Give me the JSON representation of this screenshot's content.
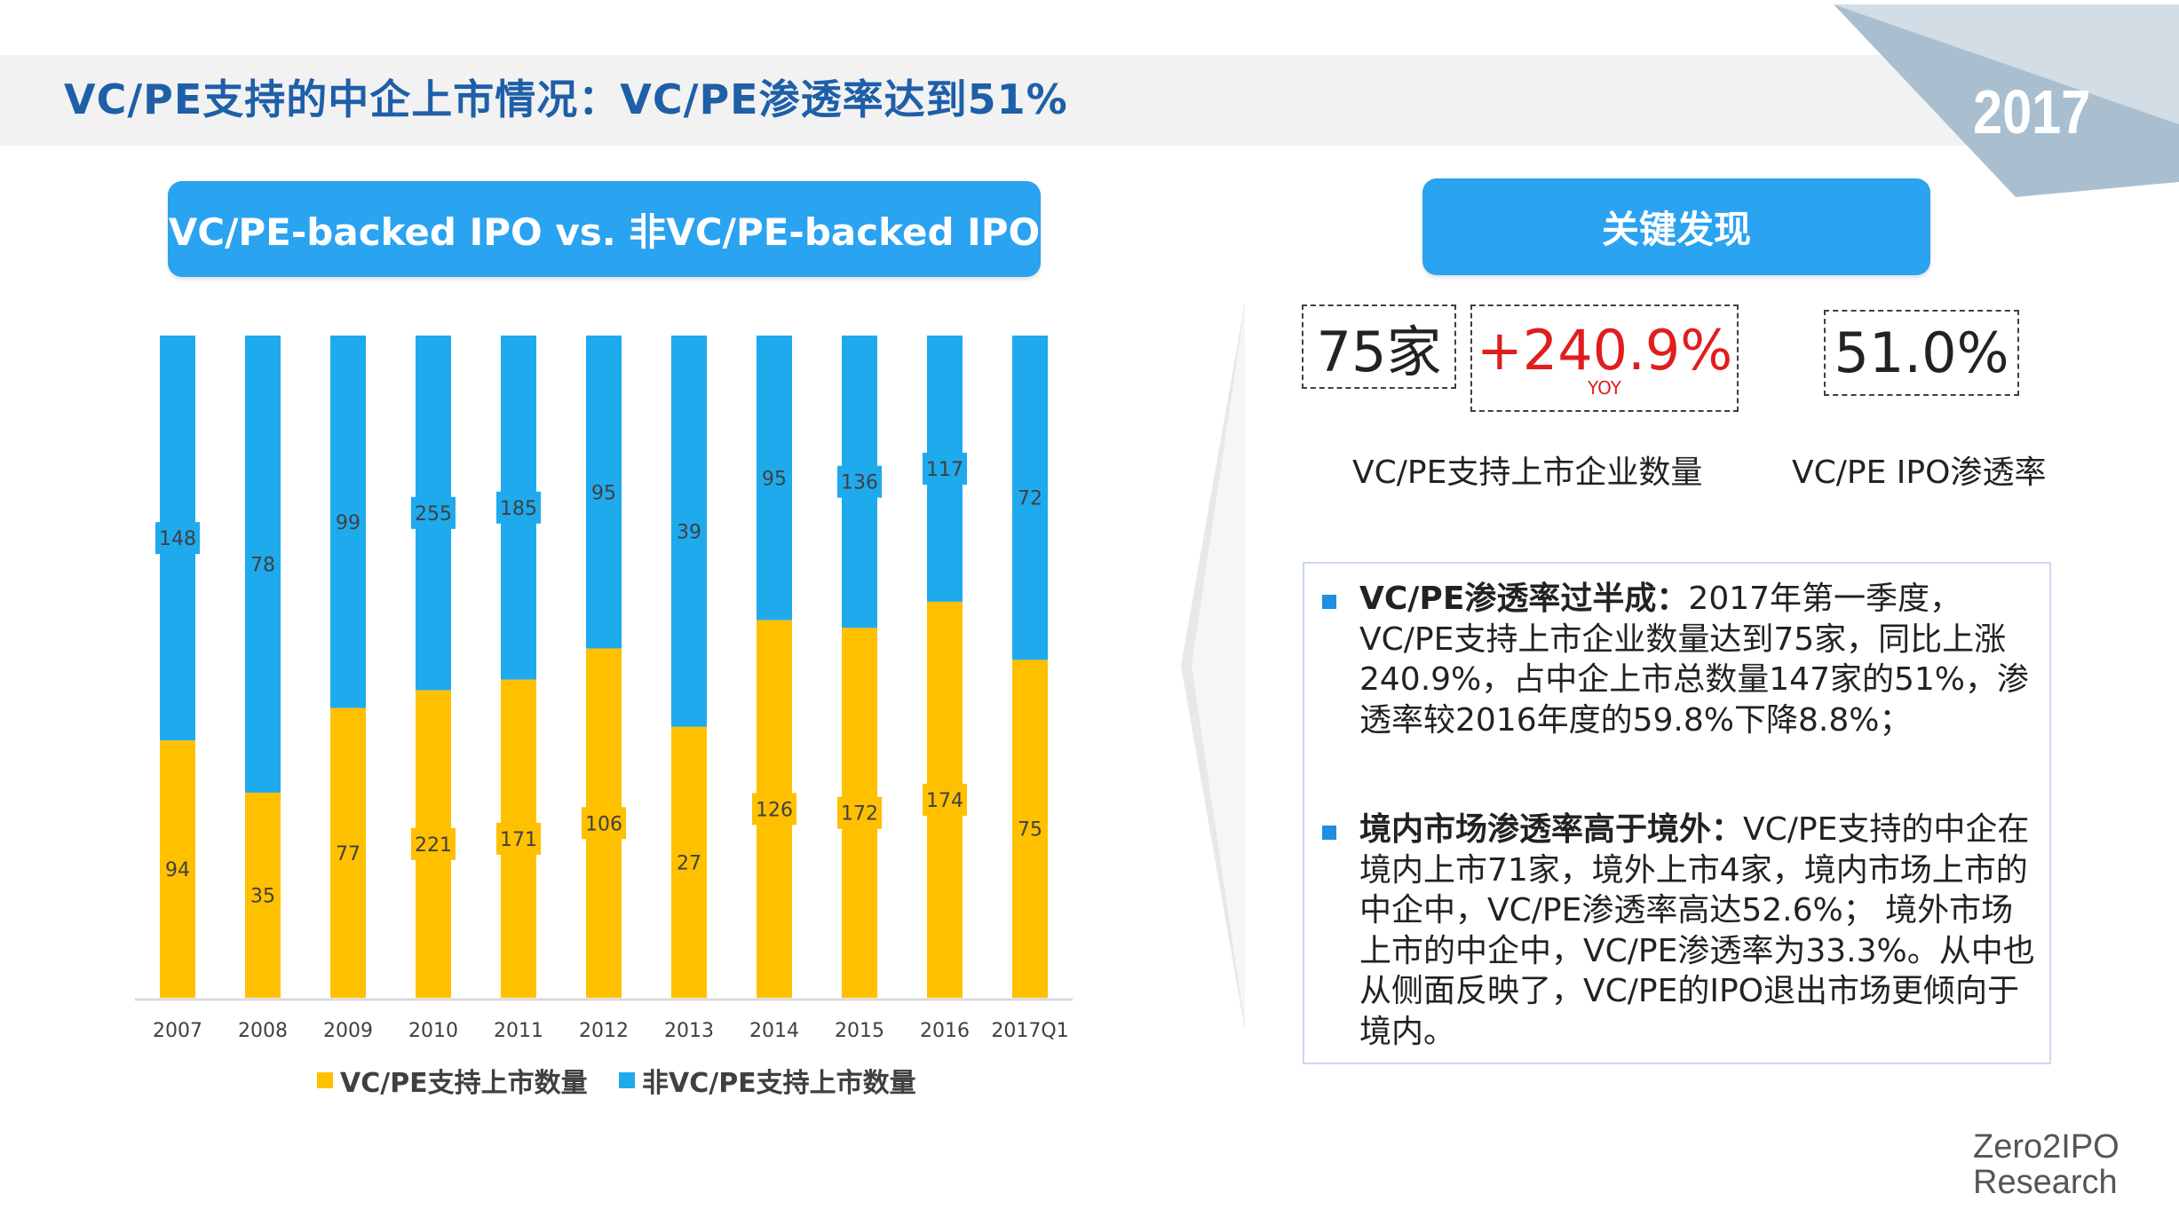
{
  "page": {
    "title": "VC/PE支持的中企上市情况：VC/PE渗透率达到51%",
    "year_badge": "2017",
    "footer_logo_line1": "Zero2IPO",
    "footer_logo_line2": "Research"
  },
  "chart_header": "VC/PE-backed IPO vs. 非VC/PE-backed IPO",
  "findings_header": "关键发现",
  "kpis": {
    "count_value": "75家",
    "growth_value": "+240.9%",
    "growth_sub": "YOY",
    "rate_value": "51.0%",
    "count_caption": "VC/PE支持上市企业数量",
    "rate_caption": "VC/PE IPO渗透率"
  },
  "findings": [
    {
      "heading": "VC/PE渗透率过半成：",
      "body": "2017年第一季度，VC/PE支持上市企业数量达到75家，同比上涨240.9%，占中企上市总数量147家的51%，渗透率较2016年度的59.8%下降8.8%；"
    },
    {
      "heading": "境内市场渗透率高于境外：",
      "body": "VC/PE支持的中企在境内上市71家，境外上市4家，境内市场上市的中企中，VC/PE渗透率高达52.6%； 境外市场上市的中企中，VC/PE渗透率为33.3%。从中也从侧面反映了，VC/PE的IPO退出市场更倾向于境内。"
    }
  ],
  "colors": {
    "title": "#1e5fa8",
    "pill": "#2aa3f0",
    "vcpe": "#ffc000",
    "non_vcpe": "#1faaee",
    "growth": "#e11d1d"
  },
  "chart_data": {
    "type": "bar",
    "stacked": true,
    "normalized": true,
    "categories": [
      "2007",
      "2008",
      "2009",
      "2010",
      "2011",
      "2012",
      "2013",
      "2014",
      "2015",
      "2016",
      "2017Q1"
    ],
    "series": [
      {
        "name": "VC/PE支持上市数量",
        "color": "#ffc000",
        "values": [
          94,
          35,
          77,
          221,
          171,
          106,
          27,
          126,
          172,
          174,
          75
        ]
      },
      {
        "name": "非VC/PE支持上市数量",
        "color": "#1faaee",
        "values": [
          148,
          78,
          99,
          255,
          185,
          95,
          39,
          95,
          136,
          117,
          72
        ]
      }
    ],
    "legend_position": "bottom",
    "grid": false
  }
}
